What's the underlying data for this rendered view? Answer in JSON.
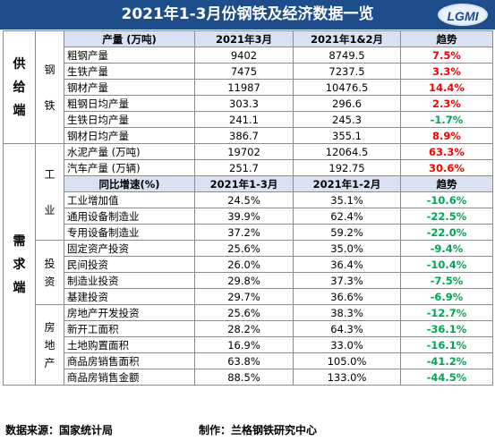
{
  "title": "2021年1-3月份钢铁及经济数据一览",
  "logo_text": "LGMI",
  "categories": {
    "supply": "供\n给\n端",
    "demand": "需\n求\n端",
    "steel": "钢\n\n铁",
    "industry": "工\n\n业",
    "investment": "投\n资",
    "realestate": "房\n地\n产"
  },
  "header1": [
    "产量 (万吨)",
    "2021年3月",
    "2021年1&2月",
    "趋势"
  ],
  "steel_rows": [
    {
      "label": "粗钢产量",
      "v1": "9402",
      "v2": "8749.5",
      "trend": "7.5%",
      "dir": "up"
    },
    {
      "label": "生铁产量",
      "v1": "7475",
      "v2": "7237.5",
      "trend": "3.3%",
      "dir": "up"
    },
    {
      "label": "钢材产量",
      "v1": "11987",
      "v2": "10476.5",
      "trend": "14.4%",
      "dir": "up"
    },
    {
      "label": "粗钢日均产量",
      "v1": "303.3",
      "v2": "296.6",
      "trend": "2.3%",
      "dir": "up"
    },
    {
      "label": "生铁日均产量",
      "v1": "241.1",
      "v2": "245.3",
      "trend": "-1.7%",
      "dir": "down"
    },
    {
      "label": "钢材日均产量",
      "v1": "386.7",
      "v2": "355.1",
      "trend": "8.9%",
      "dir": "up"
    }
  ],
  "output_rows": [
    {
      "label": "水泥产量 (万吨)",
      "v1": "19702",
      "v2": "12064.5",
      "trend": "63.3%",
      "dir": "up"
    },
    {
      "label": "汽车产量 (万辆)",
      "v1": "251.7",
      "v2": "192.75",
      "trend": "30.6%",
      "dir": "up"
    }
  ],
  "header2": [
    "同比增速(%)",
    "2021年1-3月",
    "2021年1-2月",
    "趋势"
  ],
  "industry_rows": [
    {
      "label": "工业增加值",
      "v1": "24.5%",
      "v2": "35.1%",
      "trend": "-10.6%",
      "dir": "down"
    },
    {
      "label": "通用设备制造业",
      "v1": "39.9%",
      "v2": "62.4%",
      "trend": "-22.5%",
      "dir": "down"
    },
    {
      "label": "专用设备制造业",
      "v1": "37.2%",
      "v2": "59.2%",
      "trend": "-22.0%",
      "dir": "down"
    }
  ],
  "invest_rows": [
    {
      "label": "固定资产投资",
      "v1": "25.6%",
      "v2": "35.0%",
      "trend": "-9.4%",
      "dir": "down"
    },
    {
      "label": "民间投资",
      "v1": "26.0%",
      "v2": "36.4%",
      "trend": "-10.4%",
      "dir": "down"
    },
    {
      "label": "制造业投资",
      "v1": "29.8%",
      "v2": "37.3%",
      "trend": "-7.5%",
      "dir": "down"
    },
    {
      "label": "基建投资",
      "v1": "29.7%",
      "v2": "36.6%",
      "trend": "-6.9%",
      "dir": "down"
    }
  ],
  "estate_rows": [
    {
      "label": "房地产开发投资",
      "v1": "25.6%",
      "v2": "38.3%",
      "trend": "-12.7%",
      "dir": "down"
    },
    {
      "label": "新开工面积",
      "v1": "28.2%",
      "v2": "64.3%",
      "trend": "-36.1%",
      "dir": "down"
    },
    {
      "label": "土地购置面积",
      "v1": "16.9%",
      "v2": "33.0%",
      "trend": "-16.1%",
      "dir": "down"
    },
    {
      "label": "商品房销售面积",
      "v1": "63.8%",
      "v2": "105.0%",
      "trend": "-41.2%",
      "dir": "down"
    },
    {
      "label": "商品房销售金额",
      "v1": "88.5%",
      "v2": "133.0%",
      "trend": "-44.5%",
      "dir": "down"
    }
  ],
  "footer": {
    "source": "数据来源：国家统计局",
    "producer": "制作：兰格钢铁研究中心"
  },
  "colors": {
    "up": "#ff0000",
    "down": "#00a651",
    "title_bg": "#1e4d8c",
    "header_bg": "#d9e2f3"
  }
}
